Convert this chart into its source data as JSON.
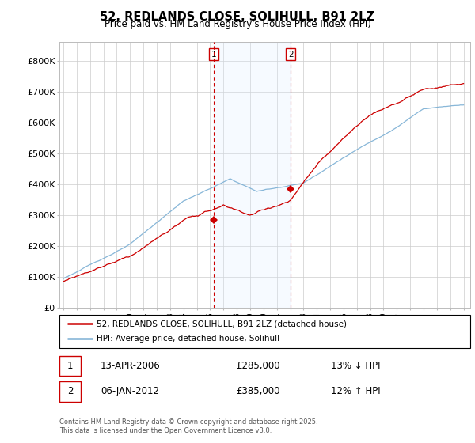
{
  "title": "52, REDLANDS CLOSE, SOLIHULL, B91 2LZ",
  "subtitle": "Price paid vs. HM Land Registry's House Price Index (HPI)",
  "ytick_labels": [
    "£0",
    "£100K",
    "£200K",
    "£300K",
    "£400K",
    "£500K",
    "£600K",
    "£700K",
    "£800K"
  ],
  "yticks": [
    0,
    100000,
    200000,
    300000,
    400000,
    500000,
    600000,
    700000,
    800000
  ],
  "ylim": [
    0,
    860000
  ],
  "xlim_left": 1994.7,
  "xlim_right": 2025.5,
  "legend_line1": "52, REDLANDS CLOSE, SOLIHULL, B91 2LZ (detached house)",
  "legend_line2": "HPI: Average price, detached house, Solihull",
  "line1_color": "#cc0000",
  "line2_color": "#7bafd4",
  "annotation1_date": "13-APR-2006",
  "annotation1_price": "£285,000",
  "annotation1_hpi": "13% ↓ HPI",
  "annotation2_date": "06-JAN-2012",
  "annotation2_price": "£385,000",
  "annotation2_hpi": "12% ↑ HPI",
  "footer": "Contains HM Land Registry data © Crown copyright and database right 2025.\nThis data is licensed under the Open Government Licence v3.0.",
  "shade_color": "#ddeeff",
  "vline_color": "#cc0000",
  "background_color": "#ffffff",
  "grid_color": "#cccccc",
  "sale1_year": 2006.29,
  "sale1_price": 285000,
  "sale2_year": 2012.04,
  "sale2_price": 385000
}
